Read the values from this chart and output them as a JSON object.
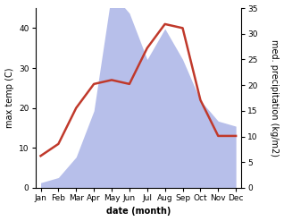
{
  "months": [
    "Jan",
    "Feb",
    "Mar",
    "Apr",
    "May",
    "Jun",
    "Jul",
    "Aug",
    "Sep",
    "Oct",
    "Nov",
    "Dec"
  ],
  "temperature": [
    8,
    11,
    20,
    26,
    27,
    26,
    35,
    41,
    40,
    22,
    13,
    13
  ],
  "precipitation": [
    1,
    2,
    6,
    15,
    38,
    34,
    25,
    31,
    25,
    17,
    13,
    12
  ],
  "temp_color": "#c0392b",
  "precip_fill_color": "#b0b8e8",
  "temp_ylim": [
    0,
    45
  ],
  "precip_ylim": [
    0,
    35
  ],
  "temp_yticks": [
    0,
    10,
    20,
    30,
    40
  ],
  "precip_yticks": [
    0,
    5,
    10,
    15,
    20,
    25,
    30,
    35
  ],
  "xlabel": "date (month)",
  "ylabel_left": "max temp (C)",
  "ylabel_right": "med. precipitation (kg/m2)",
  "bg_color": "#ffffff",
  "label_fontsize": 7,
  "tick_fontsize": 6.5,
  "line_width": 1.8
}
